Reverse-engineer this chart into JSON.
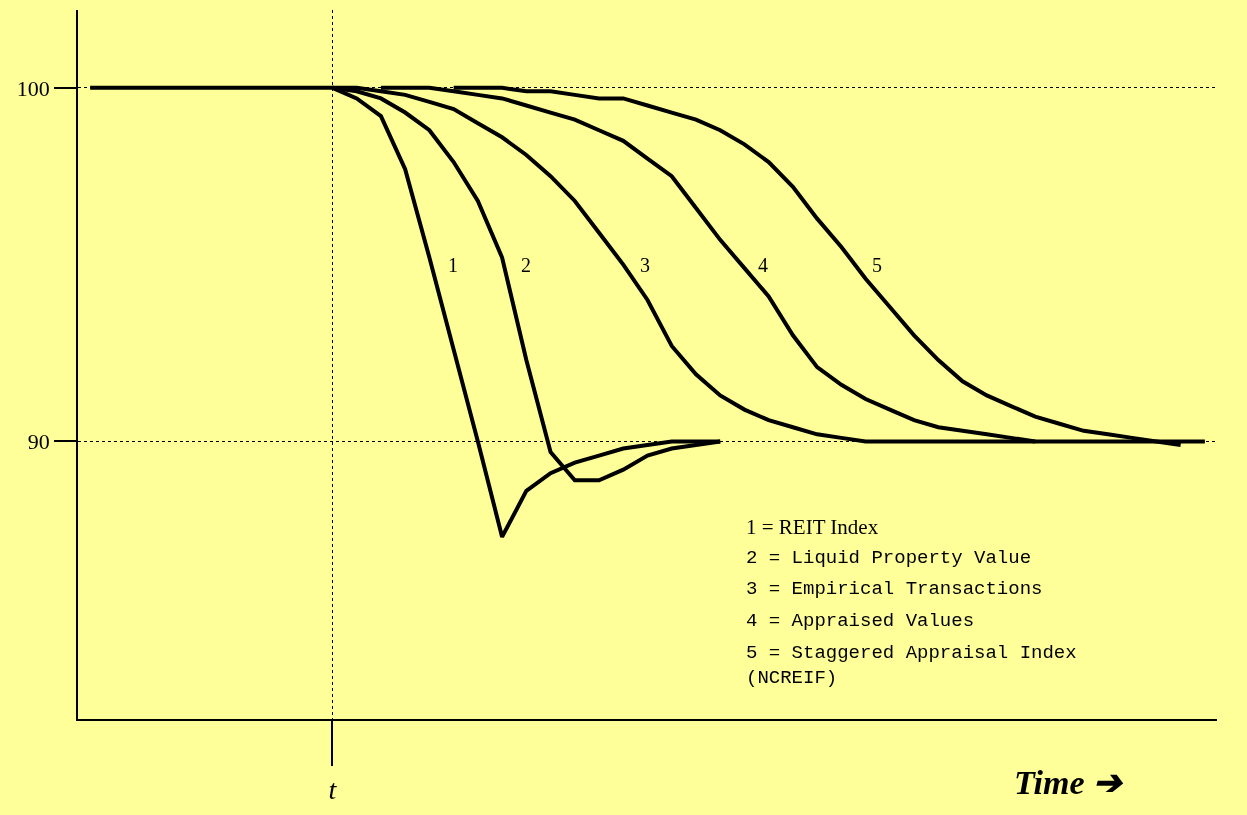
{
  "chart_data": {
    "type": "line",
    "xlabel": "Time ➔",
    "categories": [
      null,
      null,
      null,
      null,
      null,
      null,
      null,
      null,
      null,
      null,
      "t",
      null,
      null,
      null,
      null,
      null,
      null,
      null,
      null,
      null,
      null,
      null,
      null,
      null,
      null,
      null,
      null,
      null,
      null,
      null,
      null,
      null,
      null,
      null,
      null,
      null,
      null,
      null,
      null,
      null,
      null,
      null,
      null,
      null,
      null,
      null,
      null
    ],
    "ylim": [
      82.15,
      102.2
    ],
    "yticks": [
      90,
      100
    ],
    "grid": true,
    "legend": false,
    "marker": "none",
    "line_style": "solid",
    "series": [
      {
        "name": "1",
        "color": "#000000",
        "values": [
          100,
          100,
          100,
          100,
          100,
          100,
          100,
          100,
          100,
          100,
          100,
          99.7,
          99.2,
          97.7,
          95.2,
          92.6,
          90.0,
          87.3,
          88.6,
          89.1,
          89.4,
          89.6,
          89.8,
          89.9,
          90,
          90,
          90,
          null,
          null,
          null,
          null,
          null,
          null,
          null,
          null,
          null,
          null,
          null,
          null,
          null,
          null,
          null,
          null,
          null,
          null,
          null,
          null
        ]
      },
      {
        "name": "2",
        "color": "#000000",
        "values": [
          null,
          null,
          null,
          null,
          null,
          null,
          null,
          null,
          null,
          null,
          100,
          99.9,
          99.7,
          99.3,
          98.8,
          97.9,
          96.8,
          95.2,
          92.3,
          89.7,
          88.9,
          88.9,
          89.2,
          89.6,
          89.8,
          89.9,
          90,
          null,
          null,
          null,
          null,
          null,
          null,
          null,
          null,
          null,
          null,
          null,
          null,
          null,
          null,
          null,
          null,
          null,
          null,
          null,
          null
        ]
      },
      {
        "name": "3",
        "color": "#000000",
        "values": [
          null,
          null,
          null,
          null,
          null,
          null,
          null,
          null,
          null,
          null,
          100,
          100,
          99.9,
          99.8,
          99.6,
          99.4,
          99.0,
          98.6,
          98.1,
          97.5,
          96.8,
          95.9,
          95.0,
          94.0,
          92.7,
          91.9,
          91.3,
          90.9,
          90.6,
          90.4,
          90.2,
          90.1,
          90,
          90,
          90,
          90,
          90,
          90,
          90,
          90,
          90,
          90,
          90,
          90,
          90,
          90,
          90
        ]
      },
      {
        "name": "4",
        "color": "#000000",
        "values": [
          null,
          null,
          null,
          null,
          null,
          null,
          null,
          null,
          null,
          null,
          null,
          null,
          100,
          100,
          100,
          99.9,
          99.8,
          99.7,
          99.5,
          99.3,
          99.1,
          98.8,
          98.5,
          98.0,
          97.5,
          96.6,
          95.7,
          94.9,
          94.1,
          93.0,
          92.1,
          91.6,
          91.2,
          90.9,
          90.6,
          90.4,
          90.3,
          90.2,
          90.1,
          90,
          null,
          null,
          null,
          null,
          null,
          null,
          null
        ]
      },
      {
        "name": "5",
        "color": "#000000",
        "values": [
          null,
          null,
          null,
          null,
          null,
          null,
          null,
          null,
          null,
          null,
          null,
          null,
          null,
          null,
          null,
          100,
          100,
          100,
          99.9,
          99.9,
          99.8,
          99.7,
          99.7,
          99.5,
          99.3,
          99.1,
          98.8,
          98.4,
          97.9,
          97.2,
          96.3,
          95.5,
          94.6,
          93.8,
          93.0,
          92.3,
          91.7,
          91.3,
          91.0,
          90.7,
          90.5,
          90.3,
          90.2,
          90.1,
          90,
          89.9,
          null
        ]
      }
    ],
    "annotations": [
      "1 = REIT Index",
      "2 = Liquid Property Value",
      "3 = Empirical Transactions",
      "4 = Appraised Values",
      "5 = Staggered Appraisal Index (NCREIF)"
    ]
  }
}
